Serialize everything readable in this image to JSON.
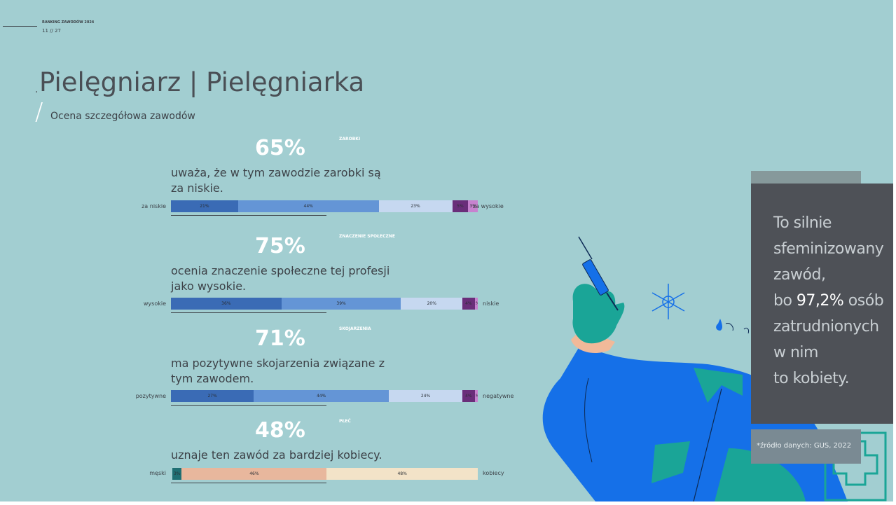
{
  "header": {
    "ranking_label": "RANKING ZAWODÓW 2024",
    "page_number": "11 // 27"
  },
  "title": "Pielęgniarz | Pielęgniarka",
  "subtitle": "Ocena szczegółowa zawodów",
  "sections": [
    {
      "percent": "65%",
      "category": "ZAROBKI",
      "description": "uważa, że w tym zawodzie zarobki są za niskie.",
      "left_label": "za niskie",
      "right_label": "za  wysokie",
      "segments": [
        {
          "label": "21%",
          "value": 21,
          "color": "#3a6bb5"
        },
        {
          "label": "44%",
          "value": 44,
          "color": "#6495d6"
        },
        {
          "label": "23%",
          "value": 23,
          "color": "#c6d8f0"
        },
        {
          "label": "5%",
          "value": 5,
          "color": "#6a2e7a"
        },
        {
          "label": "3%",
          "value": 3,
          "color": "#c782cf"
        }
      ]
    },
    {
      "percent": "75%",
      "category": "ZNACZENIE SPOŁECZNE",
      "description": "ocenia znaczenie społeczne tej profesji jako wysokie.",
      "left_label": "wysokie",
      "right_label": "niskie",
      "segments": [
        {
          "label": "36%",
          "value": 36,
          "color": "#3a6bb5"
        },
        {
          "label": "39%",
          "value": 39,
          "color": "#6495d6"
        },
        {
          "label": "20%",
          "value": 20,
          "color": "#c6d8f0"
        },
        {
          "label": "4%",
          "value": 4,
          "color": "#6a2e7a"
        },
        {
          "label": "1%",
          "value": 1,
          "color": "#c782cf"
        }
      ]
    },
    {
      "percent": "71%",
      "category": "SKOJARZENIA",
      "description": "ma pozytywne skojarzenia związane z tym zawodem.",
      "left_label": "pozytywne",
      "right_label": "negatywne",
      "segments": [
        {
          "label": "27%",
          "value": 27,
          "color": "#3a6bb5"
        },
        {
          "label": "44%",
          "value": 44,
          "color": "#6495d6"
        },
        {
          "label": "24%",
          "value": 24,
          "color": "#c6d8f0"
        },
        {
          "label": "4%",
          "value": 4,
          "color": "#6a2e7a"
        },
        {
          "label": "1%",
          "value": 1,
          "color": "#c782cf"
        }
      ]
    },
    {
      "percent": "48%",
      "category": "PŁEĆ",
      "description": "uznaje ten zawód za bardziej kobiecy.",
      "left_label": "męski",
      "right_label": "kobiecy",
      "segments": [
        {
          "label": "3%",
          "value": 3,
          "color": "#1f6f73"
        },
        {
          "label": "46%",
          "value": 46,
          "color": "#e8b79d"
        },
        {
          "label": "48%",
          "value": 48,
          "color": "#f3e3c8"
        }
      ]
    }
  ],
  "quote": {
    "line1": "To silnie",
    "line2": "sfeminizowany",
    "line3": "zawód,",
    "line4_pre": "bo ",
    "line4_hl": "97,2%",
    "line4_post": " osób",
    "line5": "zatrudnionych",
    "line6": "w nim",
    "line7": "to kobiety."
  },
  "source": "*źródło danych: GUS, 2022"
}
